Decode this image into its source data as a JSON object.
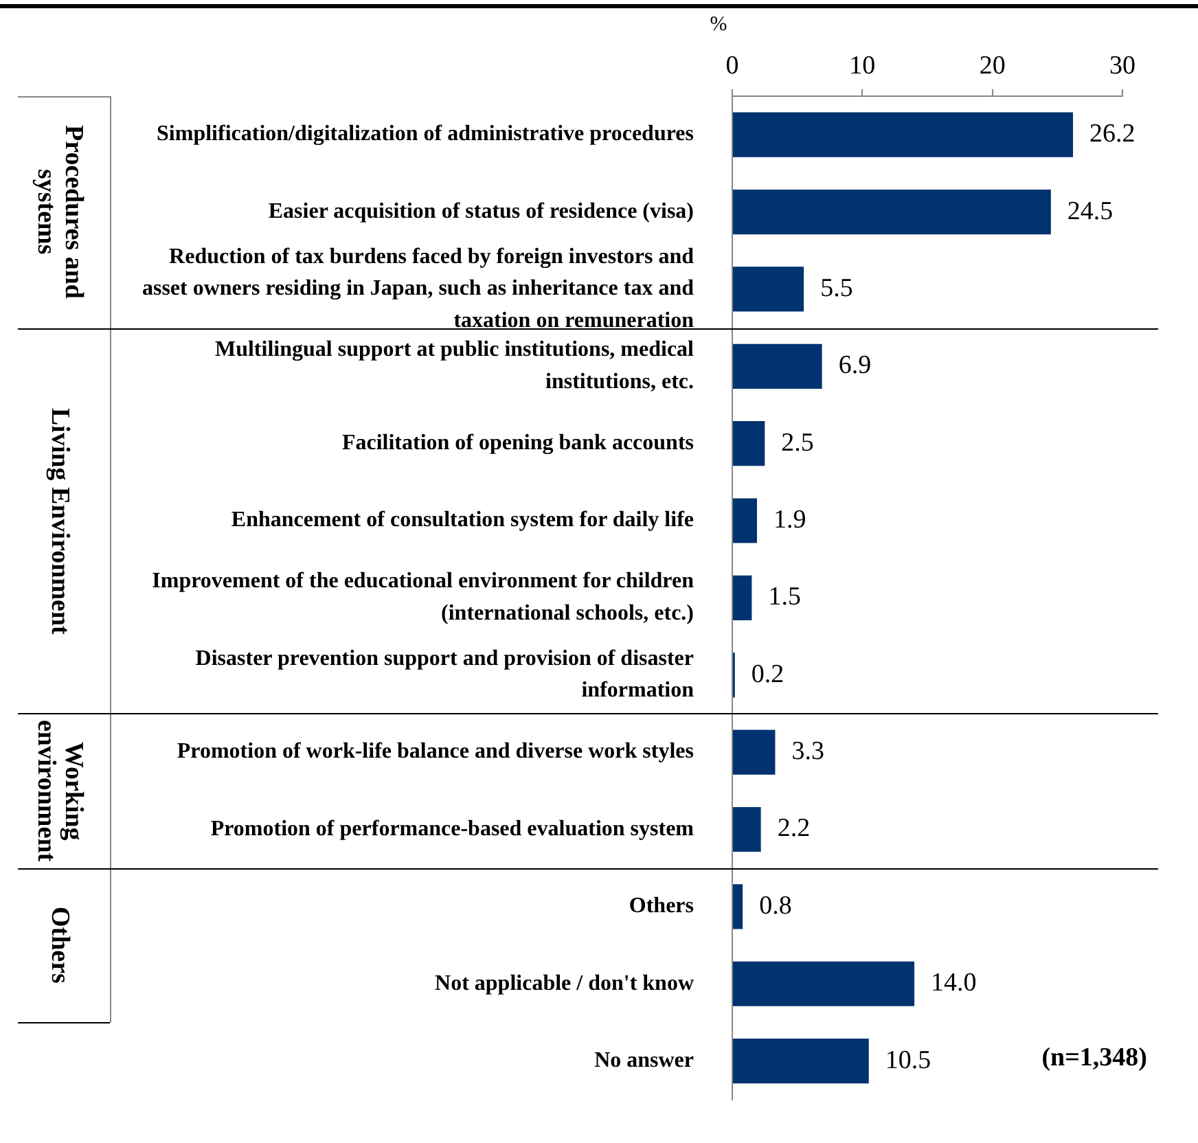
{
  "chart_data": {
    "type": "bar",
    "orientation": "horizontal",
    "xlabel": "%",
    "categories": [
      "Simplification/digitalization of administrative procedures",
      "Easier acquisition of status of residence (visa)",
      "Reduction of tax burdens faced by foreign investors and asset owners residing in Japan, such as inheritance tax and taxation on remuneration",
      "Multilingual support at public institutions, medical institutions, etc.",
      "Facilitation of opening bank accounts",
      "Enhancement of consultation system for daily life",
      "Improvement of the educational environment for children (international schools, etc.)",
      "Disaster prevention support and provision of disaster information",
      "Promotion of work-life balance and diverse work styles",
      "Promotion of performance-based evaluation system",
      "Others",
      "Not applicable / don't know",
      "No answer"
    ],
    "values": [
      26.2,
      24.5,
      5.5,
      6.9,
      2.5,
      1.9,
      1.5,
      0.2,
      3.3,
      2.2,
      0.8,
      14.0,
      10.5
    ],
    "value_labels": [
      "26.2",
      "24.5",
      "5.5",
      "6.9",
      "2.5",
      "1.9",
      "1.5",
      "0.2",
      "3.3",
      "2.2",
      "0.8",
      "14.0",
      "10.5"
    ],
    "color": "#003370",
    "xlim": [
      0,
      30
    ],
    "xticks": [
      0,
      10,
      20,
      30
    ],
    "annotations": [
      "Procedures and systems",
      "Living Environment",
      "Working environment",
      "Others",
      "(n=1,348)"
    ]
  }
}
